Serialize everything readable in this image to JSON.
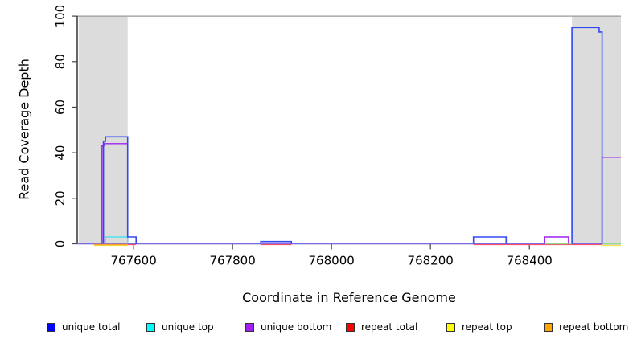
{
  "chart_data": {
    "type": "line",
    "title": "",
    "xlabel": "Coordinate in Reference Genome",
    "ylabel": "Read Coverage Depth",
    "xlim": [
      767486,
      768585
    ],
    "ylim": [
      0,
      100
    ],
    "x_ticks": [
      767600,
      767800,
      768000,
      768200,
      768400
    ],
    "y_ticks": [
      0,
      20,
      40,
      60,
      80,
      100
    ],
    "grid": false,
    "shading_color": "#DCDCDC",
    "shaded_regions": [
      {
        "x0": 767489,
        "x1": 767588
      },
      {
        "x0": 768486,
        "x1": 768585
      }
    ],
    "reference_line": {
      "y": 100,
      "color": "#999999"
    },
    "series": [
      {
        "name": "zero-baseline-blend",
        "color": "#7A68EE",
        "width": 1.3,
        "dy": 0,
        "in_legend": false,
        "segments": [
          [
            [
              767486,
              0
            ],
            [
              768585,
              0
            ]
          ]
        ]
      },
      {
        "name": "repeat top",
        "color": "#F0E545",
        "width": 1.2,
        "dy": 2,
        "in_legend": true,
        "segments": [
          [
            [
              767520,
              0
            ],
            [
              767588,
              0
            ]
          ],
          [
            [
              768547,
              0
            ],
            [
              768585,
              0
            ]
          ]
        ]
      },
      {
        "name": "repeat bottom",
        "color": "#FFA028",
        "width": 1.4,
        "dy": 1,
        "in_legend": true,
        "segments": [
          [
            [
              767520,
              0
            ],
            [
              767588,
              0
            ]
          ]
        ]
      },
      {
        "name": "repeat total",
        "color": "#F25468",
        "width": 1.2,
        "dy": 1,
        "in_legend": true,
        "segments": [
          [
            [
              767588,
              0
            ],
            [
              767605,
              0
            ]
          ],
          [
            [
              767857,
              0
            ],
            [
              767919,
              0
            ]
          ],
          [
            [
              768287,
              0
            ],
            [
              768547,
              0
            ]
          ]
        ]
      },
      {
        "name": "strand-zero-blend",
        "color": "#8FD98F",
        "width": 1.2,
        "dy": 0,
        "in_legend": false,
        "segments": [
          [
            [
              768430,
              0
            ],
            [
              768486,
              0
            ]
          ],
          [
            [
              768547,
              0
            ],
            [
              768585,
              0
            ]
          ]
        ]
      },
      {
        "name": "unique bottom",
        "color": "#A020F0",
        "width": 1.4,
        "dy": 0,
        "in_legend": true,
        "segments": [
          [
            [
              767536,
              0
            ],
            [
              767536,
              43
            ],
            [
              767540,
              43
            ],
            [
              767540,
              44
            ],
            [
              767588,
              44
            ],
            [
              767588,
              0
            ]
          ],
          [
            [
              768430,
              0
            ],
            [
              768430,
              3
            ],
            [
              768479,
              3
            ],
            [
              768479,
              0
            ]
          ],
          [
            [
              768547,
              0
            ],
            [
              768547,
              38
            ],
            [
              768585,
              38
            ]
          ]
        ]
      },
      {
        "name": "unique top",
        "color": "#4FE0EE",
        "width": 1.4,
        "dy": 0,
        "in_legend": true,
        "segments": [
          [
            [
              767543,
              0
            ],
            [
              767543,
              3
            ],
            [
              767588,
              3
            ],
            [
              767588,
              0
            ]
          ]
        ]
      },
      {
        "name": "unique total",
        "color": "#3348F2",
        "width": 1.6,
        "dy": 0,
        "in_legend": true,
        "segments": [
          [
            [
              767539,
              0
            ],
            [
              767539,
              45
            ],
            [
              767543,
              45
            ],
            [
              767543,
              47
            ],
            [
              767588,
              47
            ],
            [
              767588,
              3
            ],
            [
              767605,
              3
            ],
            [
              767605,
              0
            ]
          ],
          [
            [
              767857,
              0
            ],
            [
              767857,
              1
            ],
            [
              767919,
              1
            ],
            [
              767919,
              0
            ]
          ],
          [
            [
              768287,
              0
            ],
            [
              768287,
              3
            ],
            [
              768353,
              3
            ],
            [
              768353,
              0
            ]
          ],
          [
            [
              768486,
              0
            ],
            [
              768486,
              95
            ],
            [
              768541,
              95
            ],
            [
              768541,
              93
            ],
            [
              768547,
              93
            ],
            [
              768547,
              0
            ]
          ]
        ]
      }
    ],
    "legend": {
      "position": "bottom",
      "entries": [
        {
          "label": "unique total",
          "color": "#0000FF"
        },
        {
          "label": "unique top",
          "color": "#00FFFF"
        },
        {
          "label": "unique bottom",
          "color": "#A020F0"
        },
        {
          "label": "repeat total",
          "color": "#FF0000"
        },
        {
          "label": "repeat top",
          "color": "#FFFF00"
        },
        {
          "label": "repeat bottom",
          "color": "#FFA500"
        }
      ]
    }
  }
}
